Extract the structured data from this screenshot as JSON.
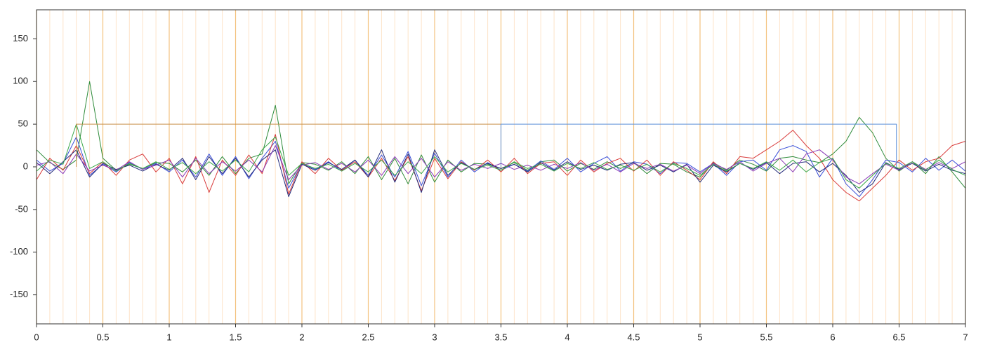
{
  "chart_data": {
    "type": "line",
    "x": [
      0,
      0.1,
      0.2,
      0.3,
      0.4,
      0.5,
      0.6,
      0.7,
      0.8,
      0.9,
      1,
      1.1,
      1.2,
      1.3,
      1.4,
      1.5,
      1.6,
      1.7,
      1.8,
      1.9,
      2,
      2.1,
      2.2,
      2.3,
      2.4,
      2.5,
      2.6,
      2.7,
      2.8,
      2.9,
      3,
      3.1,
      3.2,
      3.3,
      3.4,
      3.5,
      3.6,
      3.7,
      3.8,
      3.9,
      4,
      4.1,
      4.2,
      4.3,
      4.4,
      4.5,
      4.6,
      4.7,
      4.8,
      4.9,
      5,
      5.1,
      5.2,
      5.3,
      5.4,
      5.5,
      5.6,
      5.7,
      5.8,
      5.9,
      6,
      6.1,
      6.2,
      6.3,
      6.4,
      6.5,
      6.6,
      6.7,
      6.8,
      6.9,
      7
    ],
    "series": [
      {
        "color": "#2e8b3a",
        "values": [
          20,
          5,
          -3,
          8,
          100,
          10,
          -4,
          3,
          -2,
          5,
          4,
          -6,
          8,
          -10,
          12,
          -8,
          10,
          15,
          72,
          -20,
          5,
          3,
          -4,
          6,
          -8,
          12,
          -15,
          10,
          -20,
          14,
          -18,
          8,
          -6,
          4,
          3,
          -2,
          5,
          -4,
          6,
          8,
          -5,
          4,
          -3,
          6,
          -2,
          5,
          -8,
          4,
          3,
          -6,
          -12,
          5,
          -4,
          8,
          3,
          -5,
          10,
          12,
          8,
          5,
          15,
          30,
          58,
          40,
          10,
          -5,
          6,
          -8,
          12,
          -6,
          -25
        ]
      },
      {
        "color": "#3a4fd8",
        "values": [
          8,
          -5,
          4,
          35,
          -10,
          3,
          -6,
          5,
          -3,
          4,
          -6,
          8,
          -12,
          15,
          -10,
          12,
          -14,
          10,
          30,
          -25,
          4,
          -3,
          6,
          -5,
          8,
          -10,
          14,
          -12,
          18,
          -22,
          16,
          -12,
          8,
          -6,
          5,
          -4,
          3,
          -5,
          7,
          -3,
          10,
          -6,
          4,
          12,
          -5,
          6,
          3,
          -8,
          5,
          4,
          -6,
          4,
          -10,
          6,
          8,
          -4,
          20,
          25,
          18,
          -12,
          10,
          -20,
          -35,
          -15,
          8,
          5,
          -6,
          10,
          -4,
          8,
          -5
        ]
      },
      {
        "color": "#d83a3a",
        "values": [
          -15,
          10,
          -4,
          25,
          -8,
          6,
          -10,
          8,
          15,
          -6,
          10,
          -20,
          12,
          -30,
          8,
          -10,
          14,
          -8,
          38,
          -32,
          6,
          -8,
          10,
          -4,
          6,
          -12,
          10,
          -16,
          12,
          -28,
          10,
          -14,
          6,
          -4,
          8,
          -6,
          10,
          -8,
          4,
          6,
          -10,
          8,
          -6,
          4,
          10,
          -5,
          8,
          -10,
          6,
          -4,
          -15,
          6,
          -8,
          12,
          10,
          20,
          30,
          43,
          25,
          10,
          -15,
          -30,
          -40,
          -25,
          -10,
          8,
          -4,
          6,
          10,
          25,
          30
        ]
      },
      {
        "color": "#222a7a",
        "values": [
          5,
          -8,
          6,
          20,
          -12,
          4,
          -3,
          2,
          -5,
          3,
          -4,
          10,
          -15,
          12,
          -8,
          10,
          -12,
          8,
          20,
          -35,
          3,
          -4,
          5,
          -3,
          8,
          -12,
          20,
          -18,
          15,
          -30,
          20,
          -10,
          5,
          -3,
          4,
          -2,
          3,
          -6,
          5,
          -4,
          6,
          -3,
          2,
          -4,
          3,
          5,
          -4,
          2,
          -6,
          3,
          -18,
          2,
          -6,
          4,
          -3,
          5,
          -8,
          4,
          6,
          -6,
          4,
          -10,
          -30,
          -20,
          5,
          -3,
          4,
          -5,
          3,
          -4,
          -8
        ]
      },
      {
        "color": "#8a3ab8",
        "values": [
          2,
          6,
          -8,
          15,
          -5,
          2,
          -4,
          6,
          -3,
          2,
          8,
          -12,
          10,
          -8,
          6,
          -5,
          8,
          -6,
          25,
          -15,
          2,
          5,
          -3,
          4,
          -6,
          8,
          -10,
          12,
          -8,
          10,
          -12,
          6,
          -4,
          3,
          -2,
          4,
          -3,
          2,
          -4,
          3,
          -2,
          5,
          -4,
          3,
          -6,
          4,
          -2,
          3,
          -5,
          2,
          -8,
          4,
          -3,
          6,
          -5,
          4,
          10,
          -6,
          15,
          20,
          8,
          -12,
          -20,
          -8,
          3,
          -4,
          6,
          -3,
          5,
          -2,
          6
        ]
      },
      {
        "color": "#3aa84a",
        "values": [
          -5,
          8,
          3,
          50,
          -2,
          6,
          -5,
          4,
          -2,
          6,
          -3,
          5,
          -8,
          6,
          -5,
          8,
          -6,
          20,
          35,
          -10,
          4,
          -2,
          3,
          -5,
          4,
          -6,
          8,
          -10,
          6,
          -8,
          12,
          -6,
          4,
          -3,
          2,
          -4,
          6,
          -2,
          3,
          -5,
          4,
          -2,
          5,
          -3,
          2,
          -4,
          3,
          -6,
          4,
          -2,
          -10,
          3,
          -5,
          4,
          -2,
          6,
          -4,
          8,
          -6,
          5,
          10,
          -15,
          -25,
          -10,
          4,
          -2,
          6,
          -4,
          8,
          -3,
          -10
        ]
      },
      {
        "color": "#c8904a",
        "x": [
          0.3,
          0.3,
          3.5,
          3.5
        ],
        "values": [
          0,
          50,
          50,
          0
        ]
      },
      {
        "color": "#5a8fd8",
        "x": [
          3.5,
          3.5,
          6.48,
          6.48
        ],
        "values": [
          0,
          50,
          50,
          0
        ]
      }
    ],
    "xlim": [
      0,
      7
    ],
    "xticks": [
      0,
      0.5,
      1,
      1.5,
      2,
      2.5,
      3,
      3.5,
      4,
      4.5,
      5,
      5.5,
      6,
      6.5,
      7
    ],
    "ylim": [
      -184,
      184
    ],
    "yticks": [
      -150,
      -100,
      -50,
      0,
      50,
      100,
      150
    ],
    "grid": true,
    "minor_xstep": 0.1,
    "grid_color": "#f3c27e",
    "minor_grid_color": "#fde3c8"
  }
}
